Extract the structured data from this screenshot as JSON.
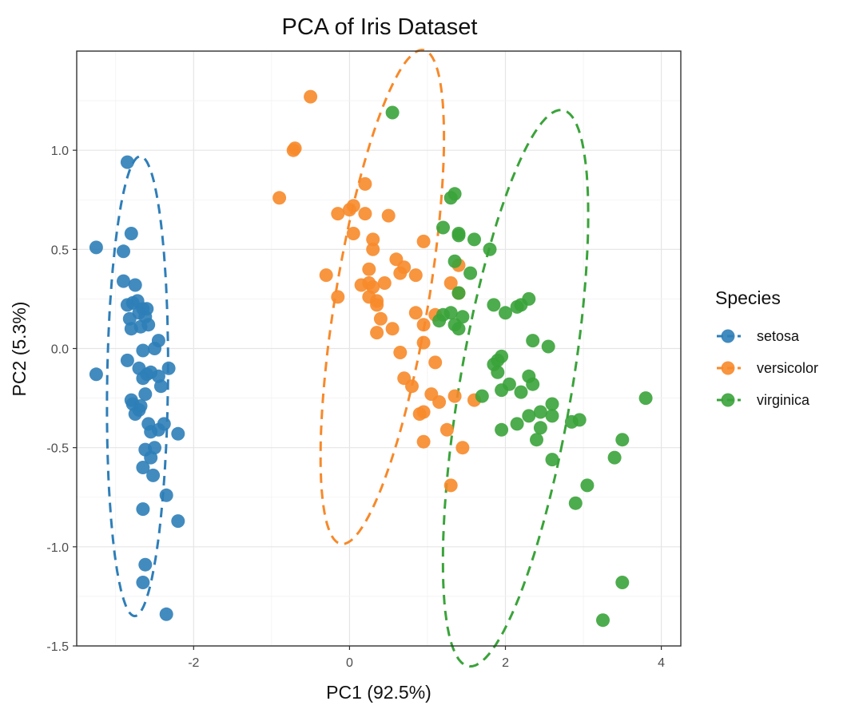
{
  "chart_data": {
    "type": "scatter",
    "title": "PCA of Iris Dataset",
    "xlabel": "PC1 (92.5%)",
    "ylabel": "PC2 (5.3%)",
    "xlim": [
      -3.5,
      4.25
    ],
    "ylim": [
      -1.5,
      1.5
    ],
    "xticks": [
      -2,
      0,
      2,
      4
    ],
    "xtick_labels": [
      "-2",
      "0",
      "2",
      "4"
    ],
    "yticks": [
      -1.5,
      -1.0,
      -0.5,
      0.0,
      0.5,
      1.0
    ],
    "ytick_labels": [
      "-1.5",
      "-1.0",
      "-0.5",
      "0.0",
      "0.5",
      "1.0"
    ],
    "grid": true,
    "legend": {
      "title": "Species",
      "position": "right",
      "entries": [
        "setosa",
        "versicolor",
        "virginica"
      ]
    },
    "ellipses": "dashed confidence ellipse per species",
    "series": [
      {
        "name": "setosa",
        "color": "#2e7eb8",
        "points": [
          [
            -2.85,
            0.94
          ],
          [
            -3.25,
            0.51
          ],
          [
            -2.9,
            0.49
          ],
          [
            -2.8,
            0.58
          ],
          [
            -2.9,
            0.34
          ],
          [
            -2.75,
            0.32
          ],
          [
            -2.72,
            0.24
          ],
          [
            -2.78,
            0.23
          ],
          [
            -2.85,
            0.22
          ],
          [
            -2.65,
            0.2
          ],
          [
            -2.6,
            0.2
          ],
          [
            -2.7,
            0.18
          ],
          [
            -2.62,
            0.16
          ],
          [
            -2.82,
            0.15
          ],
          [
            -2.58,
            0.12
          ],
          [
            -2.68,
            0.11
          ],
          [
            -2.8,
            0.1
          ],
          [
            -2.45,
            0.04
          ],
          [
            -2.5,
            0.0
          ],
          [
            -2.65,
            -0.01
          ],
          [
            -2.85,
            -0.06
          ],
          [
            -2.7,
            -0.1
          ],
          [
            -2.32,
            -0.1
          ],
          [
            -2.55,
            -0.12
          ],
          [
            -2.6,
            -0.13
          ],
          [
            -2.65,
            -0.15
          ],
          [
            -2.45,
            -0.14
          ],
          [
            -3.25,
            -0.13
          ],
          [
            -2.42,
            -0.19
          ],
          [
            -2.62,
            -0.23
          ],
          [
            -2.8,
            -0.26
          ],
          [
            -2.78,
            -0.28
          ],
          [
            -2.68,
            -0.29
          ],
          [
            -2.75,
            -0.33
          ],
          [
            -2.7,
            -0.31
          ],
          [
            -2.58,
            -0.38
          ],
          [
            -2.38,
            -0.38
          ],
          [
            -2.55,
            -0.42
          ],
          [
            -2.2,
            -0.43
          ],
          [
            -2.45,
            -0.41
          ],
          [
            -2.5,
            -0.5
          ],
          [
            -2.62,
            -0.51
          ],
          [
            -2.55,
            -0.55
          ],
          [
            -2.65,
            -0.6
          ],
          [
            -2.52,
            -0.64
          ],
          [
            -2.35,
            -0.74
          ],
          [
            -2.65,
            -0.81
          ],
          [
            -2.2,
            -0.87
          ],
          [
            -2.62,
            -1.09
          ],
          [
            -2.65,
            -1.18
          ],
          [
            -2.35,
            -1.34
          ]
        ]
      },
      {
        "name": "versicolor",
        "color": "#f7892a",
        "points": [
          [
            -0.5,
            1.27
          ],
          [
            -0.7,
            1.01
          ],
          [
            -0.72,
            1.0
          ],
          [
            -0.9,
            0.76
          ],
          [
            0.2,
            0.83
          ],
          [
            0.05,
            0.72
          ],
          [
            0.0,
            0.7
          ],
          [
            -0.15,
            0.68
          ],
          [
            0.2,
            0.68
          ],
          [
            0.5,
            0.67
          ],
          [
            0.05,
            0.58
          ],
          [
            0.3,
            0.55
          ],
          [
            0.95,
            0.54
          ],
          [
            0.3,
            0.5
          ],
          [
            0.6,
            0.45
          ],
          [
            0.7,
            0.41
          ],
          [
            0.25,
            0.4
          ],
          [
            1.4,
            0.42
          ],
          [
            0.45,
            0.33
          ],
          [
            -0.3,
            0.37
          ],
          [
            0.65,
            0.38
          ],
          [
            0.85,
            0.37
          ],
          [
            0.25,
            0.33
          ],
          [
            0.15,
            0.32
          ],
          [
            0.3,
            0.31
          ],
          [
            1.3,
            0.33
          ],
          [
            0.25,
            0.26
          ],
          [
            0.35,
            0.24
          ],
          [
            -0.15,
            0.26
          ],
          [
            1.4,
            0.28
          ],
          [
            0.35,
            0.22
          ],
          [
            0.85,
            0.18
          ],
          [
            0.4,
            0.15
          ],
          [
            0.95,
            0.12
          ],
          [
            1.1,
            0.17
          ],
          [
            0.55,
            0.1
          ],
          [
            0.35,
            0.08
          ],
          [
            0.95,
            0.03
          ],
          [
            0.65,
            -0.02
          ],
          [
            1.1,
            -0.07
          ],
          [
            0.7,
            -0.15
          ],
          [
            0.8,
            -0.19
          ],
          [
            1.05,
            -0.23
          ],
          [
            1.35,
            -0.24
          ],
          [
            1.6,
            -0.26
          ],
          [
            1.15,
            -0.27
          ],
          [
            0.95,
            -0.32
          ],
          [
            0.9,
            -0.33
          ],
          [
            1.25,
            -0.41
          ],
          [
            0.95,
            -0.47
          ],
          [
            1.45,
            -0.5
          ],
          [
            1.3,
            -0.69
          ]
        ]
      },
      {
        "name": "virginica",
        "color": "#3aa33a",
        "points": [
          [
            0.55,
            1.19
          ],
          [
            1.35,
            0.78
          ],
          [
            1.3,
            0.76
          ],
          [
            1.2,
            0.61
          ],
          [
            1.4,
            0.58
          ],
          [
            1.4,
            0.57
          ],
          [
            1.6,
            0.55
          ],
          [
            1.8,
            0.5
          ],
          [
            1.35,
            0.44
          ],
          [
            1.55,
            0.38
          ],
          [
            1.4,
            0.28
          ],
          [
            2.3,
            0.25
          ],
          [
            2.15,
            0.21
          ],
          [
            2.2,
            0.22
          ],
          [
            1.85,
            0.22
          ],
          [
            2.0,
            0.18
          ],
          [
            1.2,
            0.17
          ],
          [
            1.3,
            0.18
          ],
          [
            1.45,
            0.16
          ],
          [
            1.15,
            0.14
          ],
          [
            1.35,
            0.12
          ],
          [
            1.4,
            0.1
          ],
          [
            2.35,
            0.04
          ],
          [
            2.55,
            0.01
          ],
          [
            1.95,
            -0.04
          ],
          [
            1.9,
            -0.06
          ],
          [
            1.85,
            -0.08
          ],
          [
            1.9,
            -0.12
          ],
          [
            2.3,
            -0.14
          ],
          [
            2.05,
            -0.18
          ],
          [
            2.35,
            -0.18
          ],
          [
            1.95,
            -0.21
          ],
          [
            2.2,
            -0.22
          ],
          [
            1.7,
            -0.24
          ],
          [
            3.8,
            -0.25
          ],
          [
            2.6,
            -0.28
          ],
          [
            2.45,
            -0.32
          ],
          [
            2.6,
            -0.34
          ],
          [
            2.3,
            -0.34
          ],
          [
            2.95,
            -0.36
          ],
          [
            2.85,
            -0.37
          ],
          [
            2.15,
            -0.38
          ],
          [
            2.45,
            -0.4
          ],
          [
            1.95,
            -0.41
          ],
          [
            2.4,
            -0.46
          ],
          [
            3.5,
            -0.46
          ],
          [
            3.4,
            -0.55
          ],
          [
            2.6,
            -0.56
          ],
          [
            3.05,
            -0.69
          ],
          [
            2.9,
            -0.78
          ],
          [
            3.5,
            -1.18
          ],
          [
            3.25,
            -1.37
          ]
        ]
      }
    ],
    "ellipse_params": [
      {
        "name": "setosa",
        "cx": -2.72,
        "cy": -0.19,
        "rx": 0.39,
        "ry": 1.16,
        "angle_deg": 2
      },
      {
        "name": "versicolor",
        "cx": 0.42,
        "cy": 0.26,
        "rx": 0.55,
        "ry": 1.37,
        "angle_deg": 27
      },
      {
        "name": "virginica",
        "cx": 2.13,
        "cy": -0.2,
        "rx": 0.66,
        "ry": 1.55,
        "angle_deg": 28
      }
    ]
  }
}
